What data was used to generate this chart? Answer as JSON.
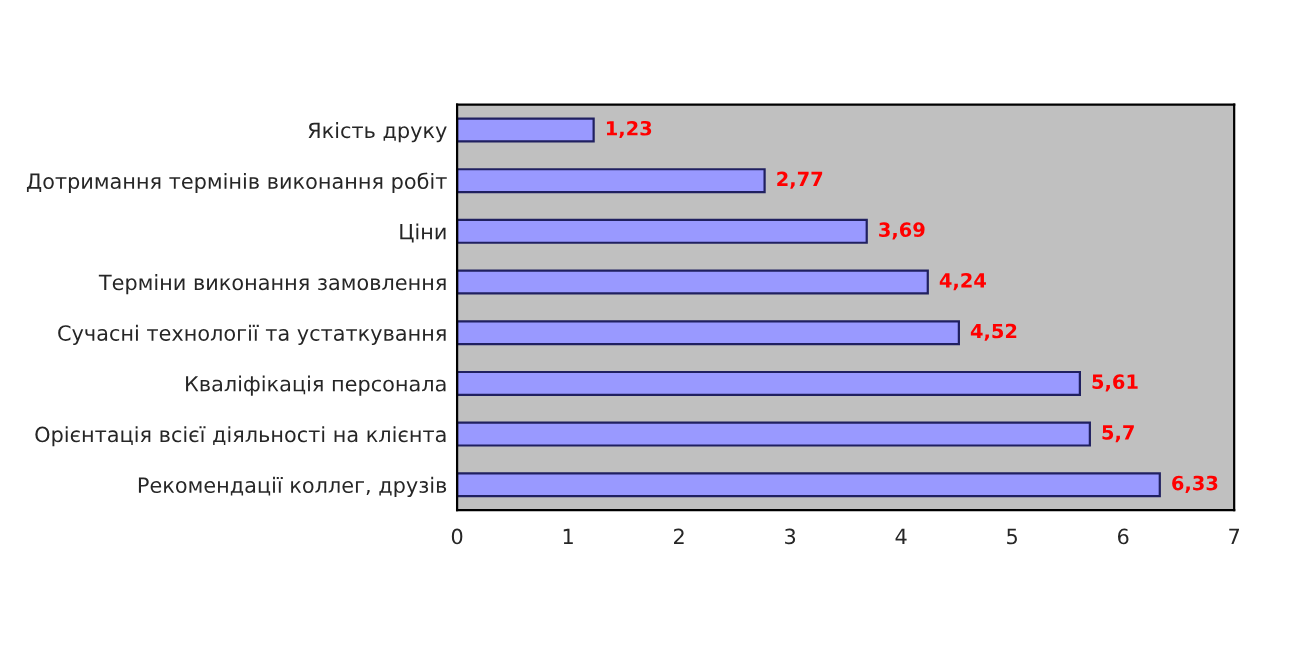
{
  "chart_data": {
    "type": "bar",
    "orientation": "horizontal",
    "categories": [
      "Якість друку",
      "Дотримання термінів виконання робіт",
      "Ціни",
      "Терміни виконання замовлення",
      "Сучасні технології та устаткування",
      "Кваліфікація персонала",
      "Орієнтація всієї діяльності на клієнта",
      "Рекомендації коллег, друзів"
    ],
    "values": [
      1.23,
      2.77,
      3.69,
      4.24,
      4.52,
      5.61,
      5.7,
      6.33
    ],
    "value_labels": [
      "1,23",
      "2,77",
      "3,69",
      "4,24",
      "4,52",
      "5,61",
      "5,7",
      "6,33"
    ],
    "color": "#9999ff",
    "xlim": [
      0,
      7
    ],
    "xticks": [
      0,
      1,
      2,
      3,
      4,
      5,
      6,
      7
    ],
    "grid": false,
    "legend": false
  }
}
